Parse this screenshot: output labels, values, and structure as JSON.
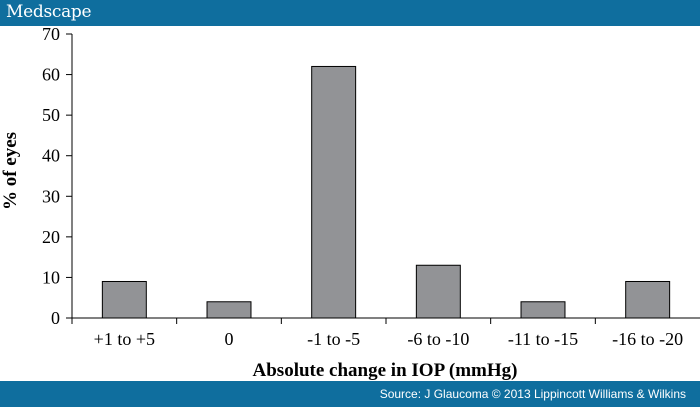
{
  "header": {
    "brand": "Medscape"
  },
  "footer": {
    "source": "Source: J Glaucoma © 2013 Lippincott Williams & Wilkins"
  },
  "colors": {
    "bar_fill": "#929396",
    "bar_stroke": "#000000",
    "brand_bar": "#0f6e9e"
  },
  "chart_data": {
    "type": "bar",
    "categories": [
      "+1 to +5",
      "0",
      "-1 to -5",
      "-6 to -10",
      "-11 to -15",
      "-16 to -20"
    ],
    "values": [
      9,
      4,
      62,
      13,
      4,
      9
    ],
    "title": "",
    "xlabel": "Absolute change in IOP (mmHg)",
    "ylabel": "% of eyes",
    "ylim": [
      0,
      70
    ],
    "yticks": [
      0,
      10,
      20,
      30,
      40,
      50,
      60,
      70
    ],
    "grid": false,
    "legend": "none"
  }
}
